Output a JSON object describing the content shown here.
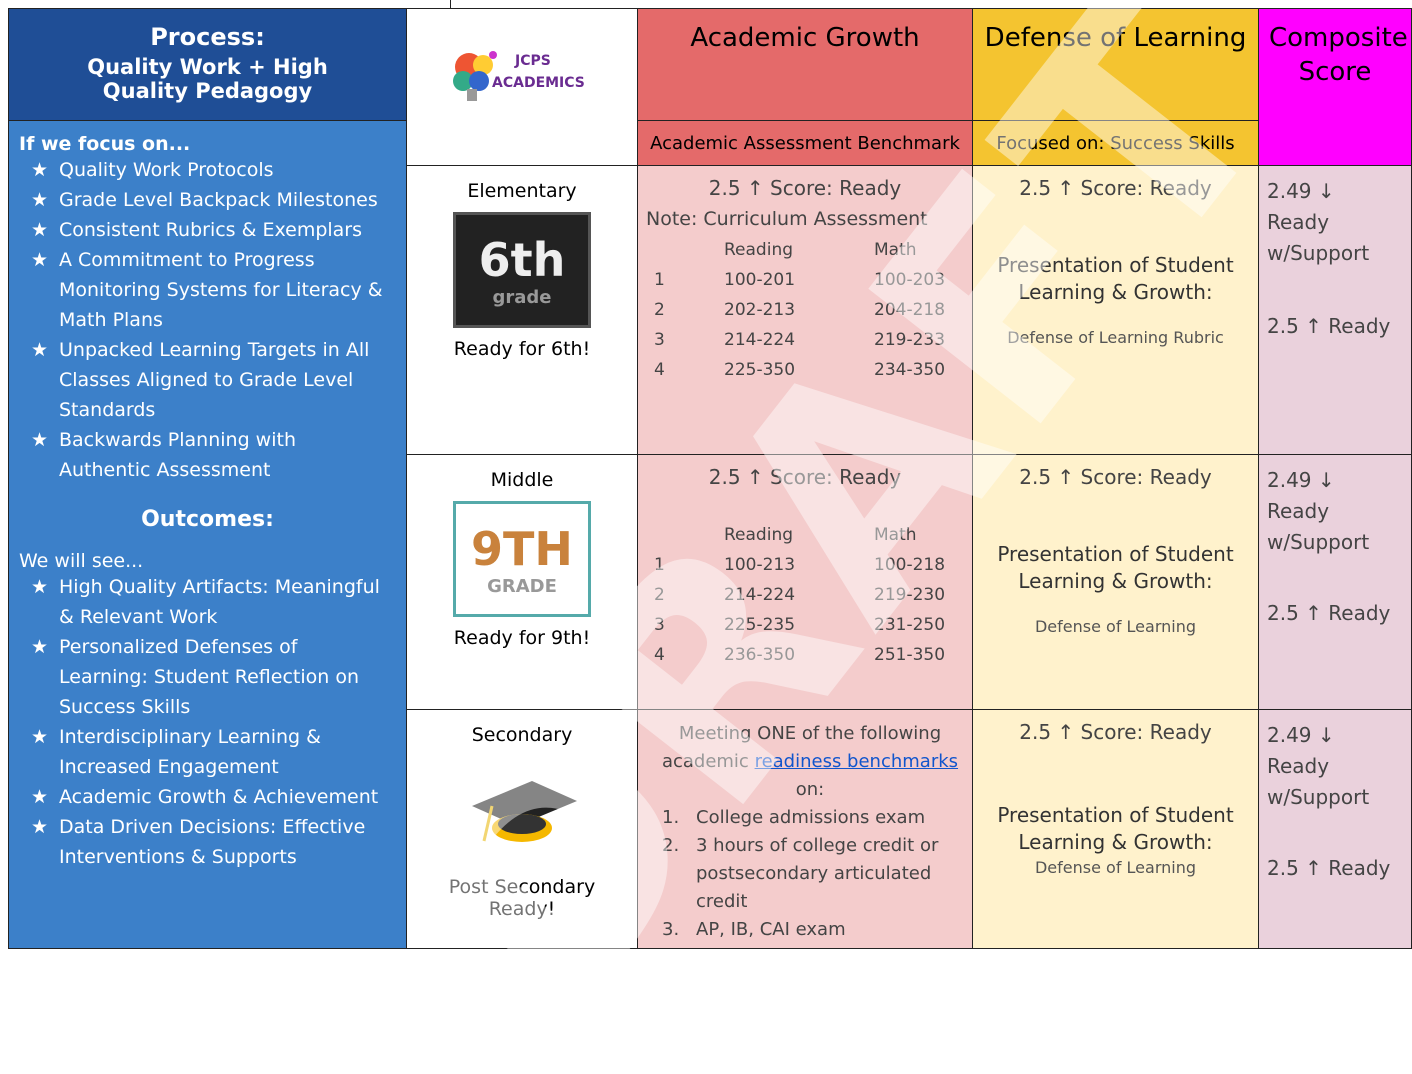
{
  "left_panel": {
    "title": [
      "Process:",
      "Quality Work + High Quality Pedagogy"
    ],
    "focus_intro": "If we focus on...",
    "focus_items": [
      "Quality Work Protocols",
      "Grade Level Backpack Milestones",
      "Consistent Rubrics & Exemplars",
      "A Commitment to Progress Monitoring Systems for Literacy & Math Plans",
      "Unpacked Learning Targets in All Classes Aligned to Grade Level Standards",
      "Backwards Planning with Authentic Assessment"
    ],
    "outcomes_title": "Outcomes:",
    "outcomes_intro": "We will see...",
    "outcomes_items": [
      "High Quality Artifacts: Meaningful & Relevant Work",
      "Personalized Defenses of Learning: Student Reflection on Success Skills",
      "Interdisciplinary Learning & Increased Engagement",
      "Academic Growth & Achievement",
      "Data Driven Decisions: Effective Interventions & Supports"
    ]
  },
  "logo": {
    "name": "JCPS",
    "subtitle": "ACADEMICS"
  },
  "columns": [
    {
      "title": "Academic Growth",
      "subtitle": "Academic Assessment Benchmark"
    },
    {
      "title": "Defense of Learning",
      "subtitle": "Focused on: Success Skills"
    },
    {
      "title": "Composite Score"
    }
  ],
  "rows": [
    {
      "level": "Elementary",
      "badge": [
        "6th",
        "grade"
      ],
      "caption": "Ready for 6th!",
      "academic": {
        "score": "2.5 ↑ Score: Ready",
        "note": "Note: Curriculum Assessment",
        "headers": [
          "Reading",
          "Math"
        ],
        "table": [
          [
            "1",
            "100-201",
            "100-203"
          ],
          [
            "2",
            "202-213",
            "204-218"
          ],
          [
            "3",
            "214-224",
            "219-233"
          ],
          [
            "4",
            "225-350",
            "234-350"
          ]
        ]
      },
      "defense": {
        "score": "2.5 ↑ Score: Ready",
        "heading": "Presentation of Student Learning & Growth:",
        "detail": "Defense of Learning Rubric"
      },
      "composite": [
        "2.49 ↓ Ready w/Support",
        "2.5 ↑ Ready"
      ]
    },
    {
      "level": "Middle",
      "badge": [
        "9TH",
        "GRADE"
      ],
      "caption": "Ready for 9th!",
      "academic": {
        "score": "2.5 ↑ Score: Ready",
        "headers": [
          "Reading",
          "Math"
        ],
        "table": [
          [
            "1",
            "100-213",
            "100-218"
          ],
          [
            "2",
            "214-224",
            "219-230"
          ],
          [
            "3",
            "225-235",
            "231-250"
          ],
          [
            "4",
            "236-350",
            "251-350"
          ]
        ]
      },
      "defense": {
        "score": "2.5 ↑ Score: Ready",
        "heading": "Presentation of Student Learning & Growth:",
        "detail": "Defense of Learning"
      },
      "composite": [
        "2.49 ↓ Ready w/Support",
        "2.5 ↑ Ready"
      ]
    },
    {
      "level": "Secondary",
      "caption": "Post Secondary Ready!",
      "academic": {
        "intro": "Meeting ONE of the following academic",
        "link": "readiness benchmarks",
        "intro_end": "on:",
        "list": [
          {
            "number": "1.",
            "text": "College admissions exam"
          },
          {
            "number": "2.",
            "text": "3 hours of college credit or postsecondary articulated credit"
          },
          {
            "number": "3.",
            "text": "AP, IB, CAI exam"
          }
        ]
      },
      "defense": {
        "score": "2.5 ↑ Score: Ready",
        "heading": "Presentation of Student Learning & Growth:",
        "detail": "Defense of Learning"
      },
      "composite": [
        "2.49 ↓ Ready w/Support",
        "2.5 ↑ Ready"
      ]
    }
  ],
  "watermark": "DRAFT"
}
